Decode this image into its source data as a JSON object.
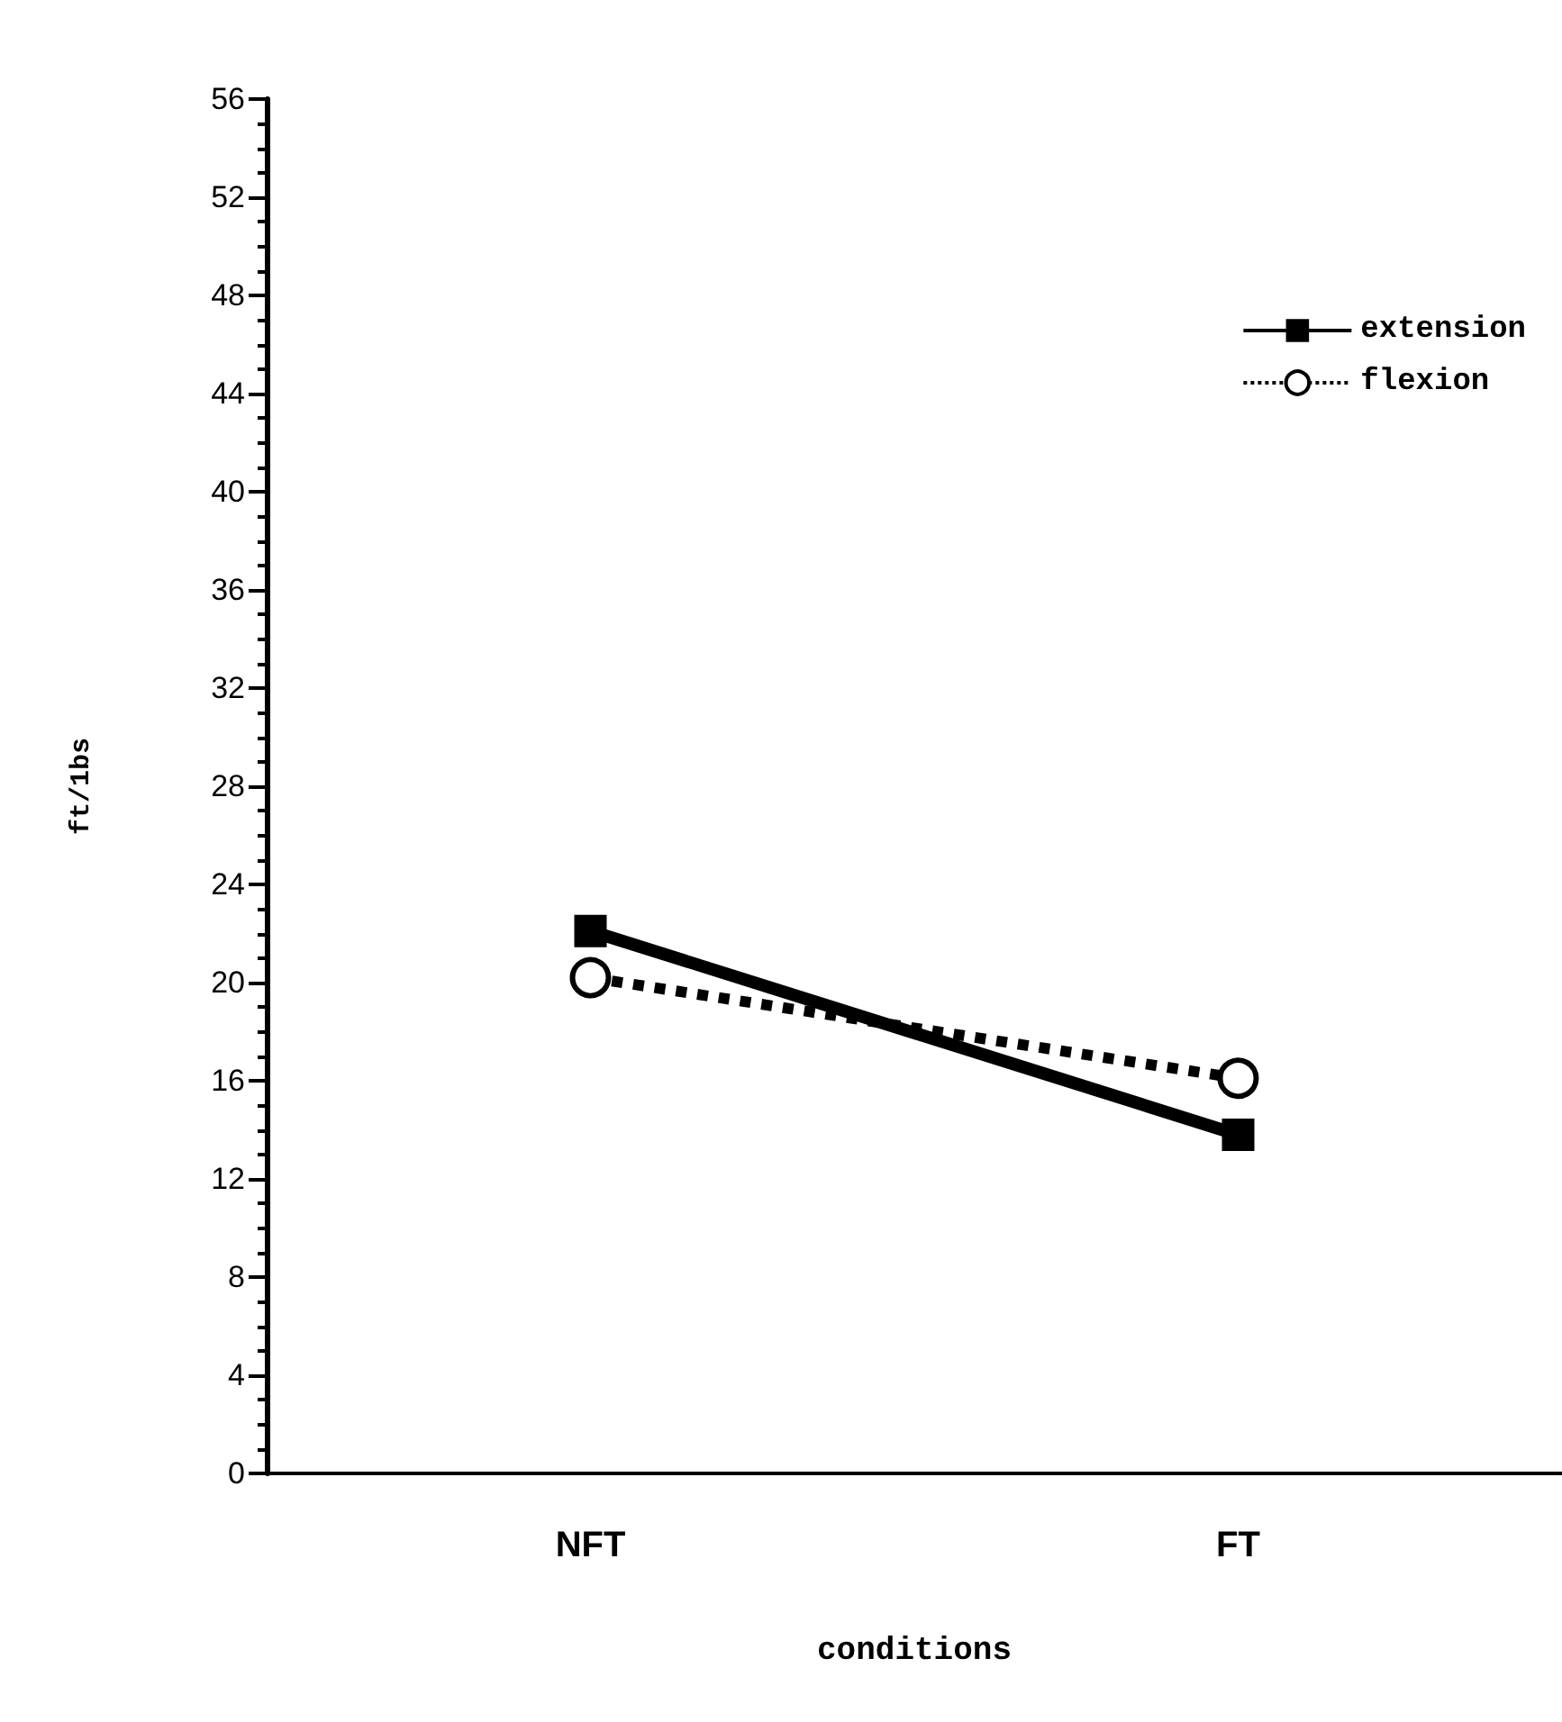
{
  "chart_data": {
    "type": "line",
    "xlabel": "conditions",
    "ylabel": "ft/1bs",
    "categories": [
      "NFT",
      "FT"
    ],
    "series": [
      {
        "name": "extension",
        "color": "#000000",
        "values": [
          22.1,
          13.8
        ],
        "marker": "square",
        "line_style": "solid"
      },
      {
        "name": "flexion",
        "color": "#000000",
        "values": [
          20.2,
          16.1
        ],
        "marker": "circle",
        "line_style": "dotted"
      }
    ],
    "ylim": [
      0,
      56
    ],
    "yticks": [
      0,
      4,
      8,
      12,
      16,
      20,
      24,
      28,
      32,
      36,
      40,
      44,
      48,
      52,
      56
    ],
    "grid": false,
    "legend": "top right"
  }
}
